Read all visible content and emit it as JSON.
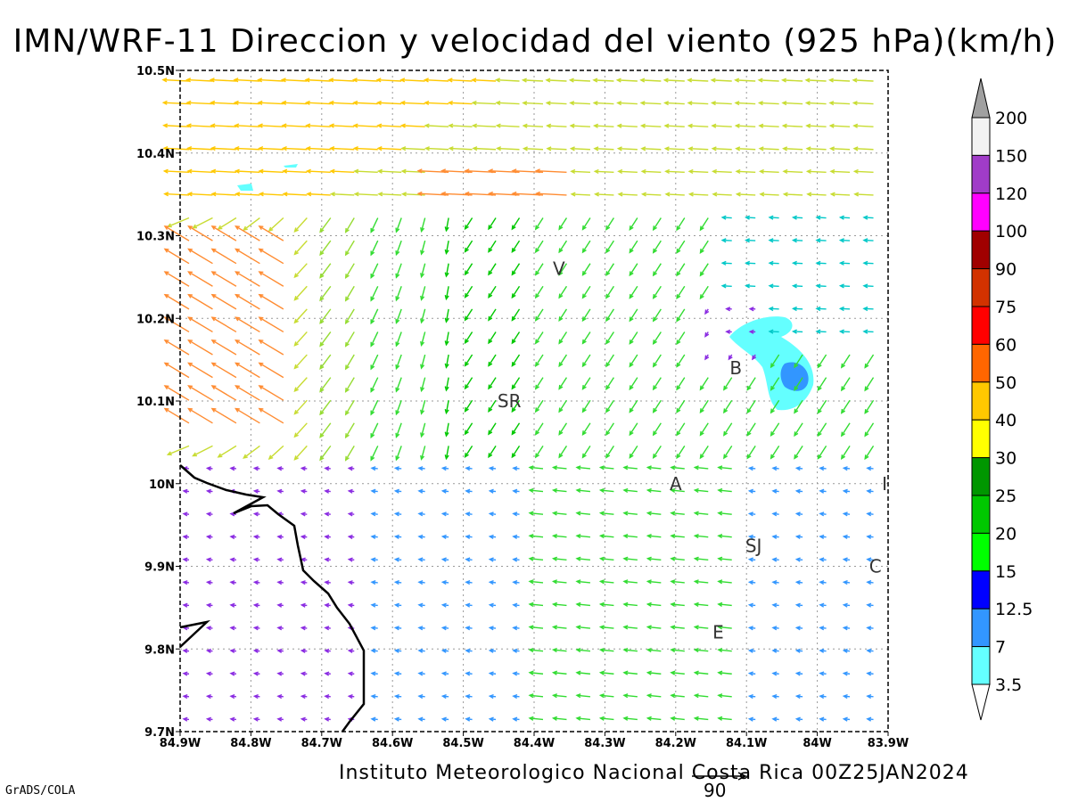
{
  "title": "IMN/WRF-11 Direccion y velocidad del viento (925 hPa)(km/h)",
  "footer": "Instituto Meteorologico Nacional Costa Rica 00Z25JAN2024",
  "credit": "GrADS/COLA",
  "reference_vector_label": "90",
  "axes": {
    "lat_ticks": [
      "10.5N",
      "10.4N",
      "10.3N",
      "10.2N",
      "10.1N",
      "10N",
      "9.9N",
      "9.8N",
      "9.7N"
    ],
    "lon_ticks": [
      "84.9W",
      "84.8W",
      "84.7W",
      "84.6W",
      "84.5W",
      "84.4W",
      "84.3W",
      "84.2W",
      "84.1W",
      "84W",
      "83.9W"
    ],
    "lat_range": [
      9.7,
      10.5
    ],
    "lon_range": [
      -84.9,
      -83.9
    ]
  },
  "cities": [
    {
      "label": "V",
      "lon": -84.365,
      "lat": 10.26
    },
    {
      "label": "SR",
      "lon": -84.435,
      "lat": 10.1
    },
    {
      "label": "B",
      "lon": -84.115,
      "lat": 10.14
    },
    {
      "label": "A",
      "lon": -84.2,
      "lat": 10.0
    },
    {
      "label": "I",
      "lon": -83.905,
      "lat": 10.0
    },
    {
      "label": "SJ",
      "lon": -84.09,
      "lat": 9.925
    },
    {
      "label": "C",
      "lon": -83.918,
      "lat": 9.9
    },
    {
      "label": "E",
      "lon": -84.14,
      "lat": 9.82
    }
  ],
  "legend": {
    "levels": [
      "200",
      "150",
      "120",
      "100",
      "90",
      "75",
      "60",
      "50",
      "40",
      "30",
      "25",
      "20",
      "15",
      "12.5",
      "7",
      "3.5"
    ],
    "colors": [
      "#f2f2f2",
      "#a03cc8",
      "#ff00ff",
      "#a00000",
      "#d23200",
      "#ff0000",
      "#ff6600",
      "#ffc800",
      "#ffff00",
      "#009600",
      "#00c800",
      "#00ff00",
      "#0000ff",
      "#3296ff",
      "#64ffff"
    ],
    "over_color": "#a0a0a0",
    "under_color": "#ffffff"
  }
}
